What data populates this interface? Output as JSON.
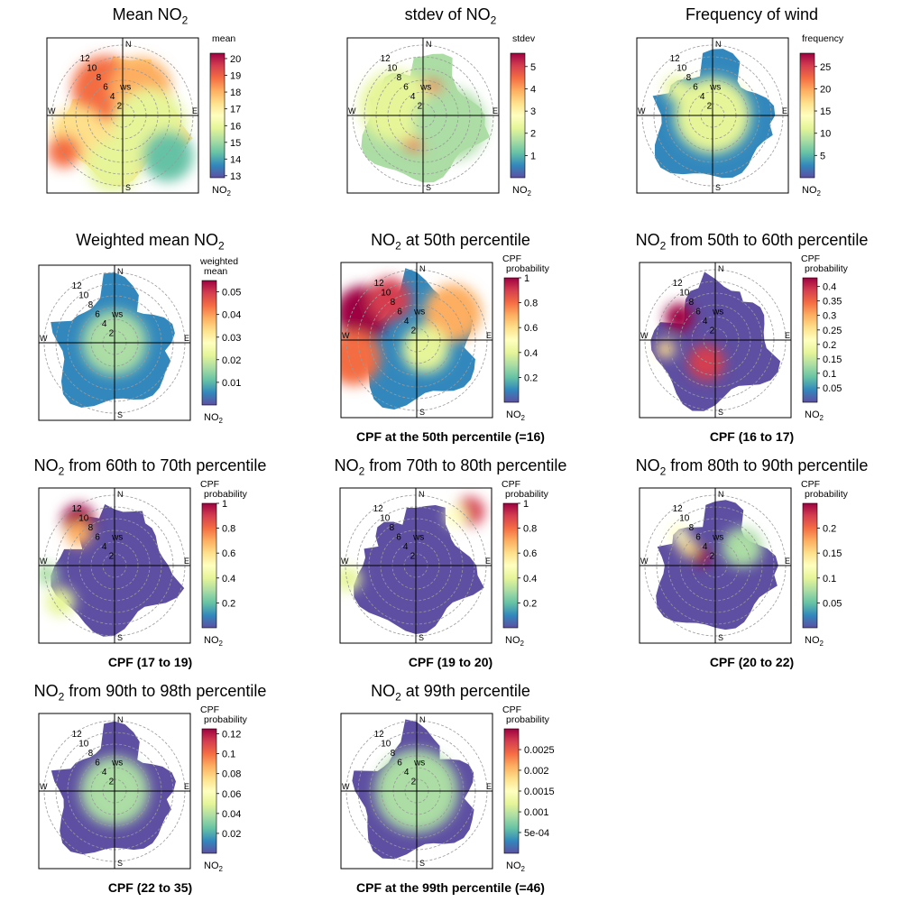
{
  "colorscale": [
    "#5E4FA2",
    "#3288BD",
    "#66C2A5",
    "#ABDDA4",
    "#E6F598",
    "#FFFFBF",
    "#FEE08B",
    "#FDAE61",
    "#F46D43",
    "#D53E4F",
    "#9E0142"
  ],
  "compass": {
    "n": "N",
    "e": "E",
    "s": "S",
    "w": "W"
  },
  "ws_label": "ws",
  "ws_ticks": [
    "2",
    "4",
    "6",
    "8",
    "10",
    "12"
  ],
  "panels": [
    {
      "title_pre": "Mean NO",
      "title_sub": "2",
      "title_post": "",
      "caption": "",
      "legend_title": [
        "mean"
      ],
      "legend_ticks": [
        "20",
        "19",
        "18",
        "17",
        "16",
        "15",
        "14",
        "13"
      ],
      "legend_unit": "NO",
      "legend_unit_sub": "2",
      "chart_data": {
        "type": "heatmap",
        "coordinate": "polar",
        "variable": "mean NO2",
        "range": [
          13,
          20.5
        ]
      }
    },
    {
      "title_pre": "stdev of NO",
      "title_sub": "2",
      "title_post": "",
      "caption": "",
      "legend_title": [
        "stdev"
      ],
      "legend_ticks": [
        "5",
        "4",
        "3",
        "2",
        "1"
      ],
      "legend_unit": "NO",
      "legend_unit_sub": "2",
      "chart_data": {
        "type": "heatmap",
        "coordinate": "polar",
        "variable": "stdev of NO2",
        "range": [
          0,
          5.6
        ]
      }
    },
    {
      "title_pre": "Frequency of wind",
      "title_sub": "",
      "title_post": "",
      "caption": "",
      "legend_title": [
        "frequency"
      ],
      "legend_ticks": [
        "25",
        "20",
        "15",
        "10",
        "5"
      ],
      "legend_unit": "NO",
      "legend_unit_sub": "2",
      "chart_data": {
        "type": "heatmap",
        "coordinate": "polar",
        "variable": "frequency",
        "range": [
          0,
          28
        ]
      }
    },
    {
      "title_pre": "Weighted mean NO",
      "title_sub": "2",
      "title_post": "",
      "caption": "",
      "legend_title": [
        "weighted",
        "mean"
      ],
      "legend_ticks": [
        "0.05",
        "0.04",
        "0.03",
        "0.02",
        "0.01"
      ],
      "legend_unit": "NO",
      "legend_unit_sub": "2",
      "chart_data": {
        "type": "heatmap",
        "coordinate": "polar",
        "variable": "weighted mean",
        "range": [
          0,
          0.055
        ]
      }
    },
    {
      "title_pre": "NO",
      "title_sub": "2",
      "title_post": " at 50th percentile",
      "caption": "CPF at the 50th percentile (=16)",
      "legend_title": [
        "CPF",
        "probability"
      ],
      "legend_ticks": [
        "1",
        "0.8",
        "0.6",
        "0.4",
        "0.2"
      ],
      "legend_unit": "NO",
      "legend_unit_sub": "2",
      "chart_data": {
        "type": "heatmap",
        "coordinate": "polar",
        "variable": "CPF probability",
        "range": [
          0,
          1
        ]
      }
    },
    {
      "title_pre": "NO",
      "title_sub": "2",
      "title_post": " from 50th to 60th percentile",
      "caption": "CPF (16 to 17)",
      "legend_title": [
        "CPF",
        "probability"
      ],
      "legend_ticks": [
        "0.4",
        "0.35",
        "0.3",
        "0.25",
        "0.2",
        "0.15",
        "0.1",
        "0.05"
      ],
      "legend_unit": "NO",
      "legend_unit_sub": "2",
      "chart_data": {
        "type": "heatmap",
        "coordinate": "polar",
        "variable": "CPF probability",
        "range": [
          0,
          0.43
        ]
      }
    },
    {
      "title_pre": "NO",
      "title_sub": "2",
      "title_post": " from 60th to 70th percentile",
      "caption": "CPF (17 to 19)",
      "legend_title": [
        "CPF",
        "probability"
      ],
      "legend_ticks": [
        "1",
        "0.8",
        "0.6",
        "0.4",
        "0.2"
      ],
      "legend_unit": "NO",
      "legend_unit_sub": "2",
      "chart_data": {
        "type": "heatmap",
        "coordinate": "polar",
        "variable": "CPF probability",
        "range": [
          0,
          1
        ]
      }
    },
    {
      "title_pre": "NO",
      "title_sub": "2",
      "title_post": " from 70th to 80th percentile",
      "caption": "CPF (19 to 20)",
      "legend_title": [
        "CPF",
        "probability"
      ],
      "legend_ticks": [
        "1",
        "0.8",
        "0.6",
        "0.4",
        "0.2"
      ],
      "legend_unit": "NO",
      "legend_unit_sub": "2",
      "chart_data": {
        "type": "heatmap",
        "coordinate": "polar",
        "variable": "CPF probability",
        "range": [
          0,
          1
        ]
      }
    },
    {
      "title_pre": "NO",
      "title_sub": "2",
      "title_post": " from 80th to 90th percentile",
      "caption": "CPF (20 to 22)",
      "legend_title": [
        "CPF",
        "probability"
      ],
      "legend_ticks": [
        "0.2",
        "0.15",
        "0.1",
        "0.05"
      ],
      "legend_unit": "NO",
      "legend_unit_sub": "2",
      "chart_data": {
        "type": "heatmap",
        "coordinate": "polar",
        "variable": "CPF probability",
        "range": [
          0,
          0.25
        ]
      }
    },
    {
      "title_pre": "NO",
      "title_sub": "2",
      "title_post": " from 90th to 98th percentile",
      "caption": "CPF (22 to 35)",
      "legend_title": [
        "CPF",
        "probability"
      ],
      "legend_ticks": [
        "0.12",
        "0.1",
        "0.08",
        "0.06",
        "0.04",
        "0.02"
      ],
      "legend_unit": "NO",
      "legend_unit_sub": "2",
      "chart_data": {
        "type": "heatmap",
        "coordinate": "polar",
        "variable": "CPF probability",
        "range": [
          0,
          0.125
        ]
      }
    },
    {
      "title_pre": "NO",
      "title_sub": "2",
      "title_post": " at 99th percentile",
      "caption": "CPF at the 99th percentile (=46)",
      "legend_title": [
        "CPF",
        "probability"
      ],
      "legend_ticks": [
        "0.0025",
        "0.002",
        "0.0015",
        "0.001",
        "5e-04"
      ],
      "legend_unit": "NO",
      "legend_unit_sub": "2",
      "chart_data": {
        "type": "heatmap",
        "coordinate": "polar",
        "variable": "CPF probability",
        "range": [
          0,
          0.003
        ]
      }
    }
  ]
}
